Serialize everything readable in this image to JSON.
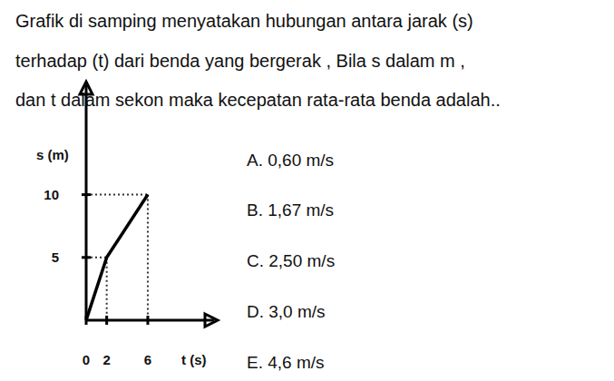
{
  "question": {
    "lines": [
      "Grafik di samping menyatakan hubungan antara jarak (s)",
      "terhadap (t) dari benda yang bergerak , Bila s dalam m ,",
      "dan t dalam sekon maka kecepatan rata-rata benda adalah.."
    ]
  },
  "chart_data": {
    "type": "line",
    "y_label": "s (m)",
    "x_label": "t (s)",
    "x": [
      0,
      2,
      6
    ],
    "values": [
      0,
      5,
      10
    ],
    "color": "#000000",
    "xlim": [
      0,
      12.8
    ],
    "ylim": [
      0,
      19
    ],
    "xticks": [
      0,
      2,
      6
    ],
    "yticks": [
      5,
      10
    ],
    "grid": false
  },
  "options": [
    "A. 0,60 m/s",
    "B. 1,67 m/s",
    "C. 2,50 m/s",
    "D. 3,0 m/s",
    "E. 4,6 m/s"
  ]
}
